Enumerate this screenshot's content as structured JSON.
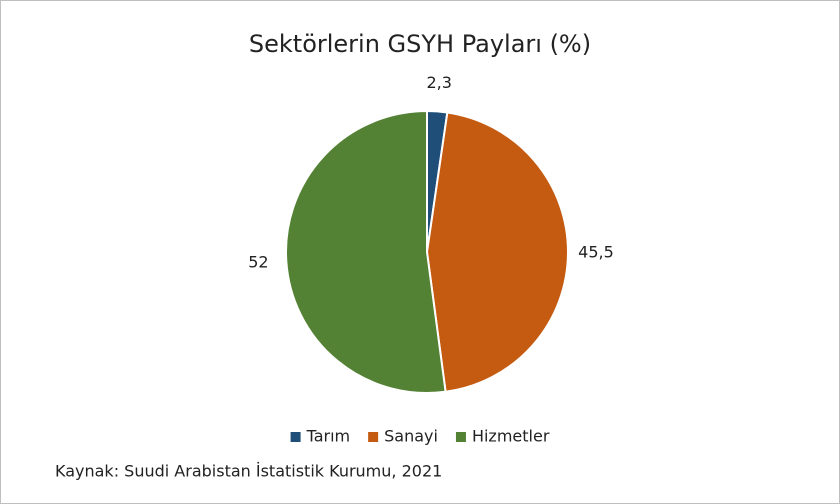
{
  "chart_data": {
    "type": "pie",
    "title": "Sektörlerin GSYH Payları (%)",
    "categories": [
      "Tarım",
      "Sanayi",
      "Hizmetler"
    ],
    "values": [
      2.3,
      45.5,
      52
    ],
    "value_labels": [
      "2,3",
      "45,5",
      "52"
    ],
    "colors": [
      "#1f4e79",
      "#c55a11",
      "#548235"
    ],
    "legend": "bottom",
    "note": "Kaynak: Suudi Arabistan İstatistik Kurumu, 2021"
  }
}
